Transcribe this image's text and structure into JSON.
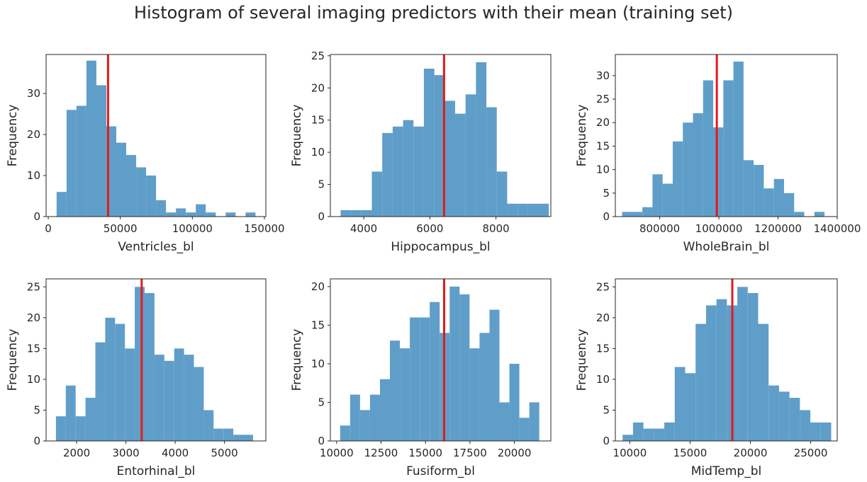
{
  "figure": {
    "title": "Histogram of several imaging predictors with their mean (training set)",
    "bar_color": "#5f9ec9",
    "mean_line_color": "#e41a1c"
  },
  "chart_data": [
    {
      "type": "bar",
      "subtype": "histogram",
      "xlabel": "Ventricles_bl",
      "ylabel": "Frequency",
      "xlim": [
        -1500,
        151000
      ],
      "ylim": [
        0,
        39.5
      ],
      "xticks": [
        0,
        50000,
        100000,
        150000
      ],
      "xtick_labels": [
        "0",
        "50000",
        "100000",
        "150000"
      ],
      "yticks": [
        0,
        10,
        20,
        30
      ],
      "bin_edges": [
        5800,
        12700,
        19600,
        26500,
        33400,
        40300,
        47200,
        54100,
        61000,
        67900,
        74800,
        81700,
        88600,
        95500,
        102400,
        109300,
        116200,
        123100,
        130000,
        136900,
        143800
      ],
      "counts": [
        6,
        26,
        27,
        38,
        32,
        22,
        18,
        15,
        12,
        10,
        4,
        1,
        2,
        1,
        3,
        1,
        0,
        1,
        0,
        1
      ],
      "mean": 41500
    },
    {
      "type": "bar",
      "subtype": "histogram",
      "xlabel": "Hippocampus_bl",
      "ylabel": "Frequency",
      "xlim": [
        2990,
        9660
      ],
      "ylim": [
        0,
        25.2
      ],
      "xticks": [
        4000,
        6000,
        8000
      ],
      "xtick_labels": [
        "4000",
        "6000",
        "8000"
      ],
      "yticks": [
        0,
        5,
        10,
        15,
        20,
        25
      ],
      "bin_edges": [
        3300,
        3615,
        3930,
        4245,
        4560,
        4875,
        5190,
        5505,
        5820,
        6135,
        6450,
        6765,
        7080,
        7395,
        7710,
        8025,
        8340,
        8655,
        8970,
        9285,
        9600
      ],
      "counts": [
        1,
        1,
        1,
        7,
        13,
        14,
        15,
        14,
        23,
        22,
        18,
        16,
        19,
        24,
        17,
        7,
        2,
        2,
        2,
        2
      ],
      "mean": 6430
    },
    {
      "type": "bar",
      "subtype": "histogram",
      "xlabel": "WholeBrain_bl",
      "ylabel": "Frequency",
      "xlim": [
        650000,
        1400000
      ],
      "ylim": [
        0,
        34.5
      ],
      "xticks": [
        800000,
        1000000,
        1200000,
        1400000
      ],
      "xtick_labels": [
        "800000",
        "1000000",
        "1200000",
        "1400000"
      ],
      "yticks": [
        0,
        5,
        10,
        15,
        20,
        25,
        30
      ],
      "bin_edges": [
        673000,
        707200,
        741400,
        775600,
        809800,
        844000,
        878200,
        912400,
        946600,
        980800,
        1015000,
        1049200,
        1083400,
        1117600,
        1151800,
        1186000,
        1220200,
        1254400,
        1288600,
        1322800,
        1357000
      ],
      "counts": [
        1,
        1,
        2,
        9,
        7,
        16,
        20,
        22,
        29,
        19,
        29,
        33,
        12,
        11,
        6,
        8,
        5,
        1,
        0,
        1
      ],
      "mean": 993000
    },
    {
      "type": "bar",
      "subtype": "histogram",
      "xlabel": "Entorhinal_bl",
      "ylabel": "Frequency",
      "xlim": [
        1380,
        5840
      ],
      "ylim": [
        0,
        26.3
      ],
      "xticks": [
        2000,
        3000,
        4000,
        5000
      ],
      "xtick_labels": [
        "2000",
        "3000",
        "4000",
        "5000"
      ],
      "yticks": [
        0,
        5,
        10,
        15,
        20,
        25
      ],
      "bin_edges": [
        1580,
        1780,
        1980,
        2180,
        2380,
        2580,
        2780,
        2980,
        3180,
        3380,
        3580,
        3780,
        3980,
        4180,
        4380,
        4580,
        4780,
        4980,
        5180,
        5380,
        5580
      ],
      "counts": [
        4,
        9,
        4,
        7,
        16,
        20,
        19,
        15,
        25,
        24,
        14,
        13,
        15,
        14,
        12,
        5,
        2,
        2,
        1,
        1
      ],
      "mean": 3320
    },
    {
      "type": "bar",
      "subtype": "histogram",
      "xlabel": "Fusiform_bl",
      "ylabel": "Frequency",
      "xlim": [
        9650,
        22050
      ],
      "ylim": [
        0,
        21
      ],
      "xticks": [
        10000,
        12500,
        15000,
        17500,
        20000
      ],
      "xtick_labels": [
        "10000",
        "12500",
        "15000",
        "17500",
        "20000"
      ],
      "yticks": [
        0,
        5,
        10,
        15,
        20
      ],
      "bin_edges": [
        10200,
        10760,
        11320,
        11880,
        12440,
        13000,
        13560,
        14120,
        14680,
        15240,
        15800,
        16360,
        16920,
        17480,
        18040,
        18600,
        19160,
        19720,
        20280,
        20840,
        21400
      ],
      "counts": [
        2,
        6,
        4,
        6,
        8,
        13,
        12,
        16,
        16,
        18,
        14,
        20,
        19,
        12,
        14,
        17,
        5,
        10,
        3,
        5
      ],
      "mean": 16050
    },
    {
      "type": "bar",
      "subtype": "histogram",
      "xlabel": "MidTemp_bl",
      "ylabel": "Frequency",
      "xlim": [
        8800,
        27200
      ],
      "ylim": [
        0,
        26.3
      ],
      "xticks": [
        10000,
        15000,
        20000,
        25000
      ],
      "xtick_labels": [
        "10000",
        "15000",
        "20000",
        "25000"
      ],
      "yticks": [
        0,
        5,
        10,
        15,
        20,
        25
      ],
      "bin_edges": [
        9400,
        10265,
        11130,
        11995,
        12860,
        13725,
        14590,
        15455,
        16320,
        17185,
        18050,
        18915,
        19780,
        20645,
        21510,
        22375,
        23240,
        24105,
        24970,
        25835,
        26700
      ],
      "counts": [
        1,
        3,
        2,
        2,
        3,
        12,
        11,
        19,
        22,
        23,
        22,
        25,
        24,
        19,
        9,
        8,
        7,
        5,
        3,
        3
      ],
      "mean": 18500
    }
  ]
}
